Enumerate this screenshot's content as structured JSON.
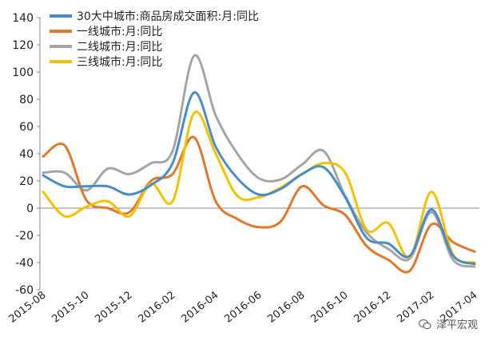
{
  "chart_data": {
    "type": "line",
    "xlabel": "",
    "ylabel": "",
    "ylim": [
      -60,
      140
    ],
    "yticks": [
      140,
      120,
      100,
      80,
      60,
      40,
      20,
      0,
      -20,
      -40,
      -60
    ],
    "categories": [
      "2015-08",
      "2015-09",
      "2015-10",
      "2015-11",
      "2015-12",
      "2016-01",
      "2016-02",
      "2016-03",
      "2016-04",
      "2016-05",
      "2016-06",
      "2016-07",
      "2016-08",
      "2016-09",
      "2016-10",
      "2016-11",
      "2016-12",
      "2017-01",
      "2017-02",
      "2017-03",
      "2017-04"
    ],
    "xtick_labels": [
      "2015-08",
      "2015-10",
      "2015-12",
      "2016-02",
      "2016-04",
      "2016-06",
      "2016-08",
      "2016-10",
      "2016-12",
      "2017-02",
      "2017-04"
    ],
    "grid": false,
    "legend_position": "top-left",
    "series": [
      {
        "name": "30大中城市:商品房成交面积:月:同比",
        "color": "#4a8cc7",
        "values": [
          24,
          16,
          16,
          16,
          10,
          17,
          33,
          85,
          45,
          22,
          10,
          14,
          25,
          30,
          8,
          -22,
          -26,
          -35,
          -1,
          -35,
          -41
        ]
      },
      {
        "name": "一线城市:月:同比",
        "color": "#e0782c",
        "values": [
          38,
          46,
          6,
          0,
          -3,
          20,
          25,
          52,
          5,
          -8,
          -14,
          -10,
          16,
          2,
          -5,
          -28,
          -38,
          -46,
          -12,
          -25,
          -32
        ]
      },
      {
        "name": "二线城市:月:同比",
        "color": "#a5a5a5",
        "values": [
          26,
          26,
          13,
          29,
          25,
          33,
          42,
          112,
          68,
          40,
          22,
          21,
          32,
          42,
          9,
          -18,
          -30,
          -37,
          -3,
          -38,
          -43
        ]
      },
      {
        "name": "三线城市:月:同比",
        "color": "#f2c200",
        "values": [
          12,
          -6,
          1,
          5,
          -6,
          18,
          5,
          70,
          40,
          9,
          8,
          15,
          25,
          33,
          26,
          -16,
          -11,
          -36,
          12,
          -34,
          -40
        ]
      }
    ]
  },
  "watermark": {
    "text": "泽平宏观",
    "icon": "wechat-icon"
  }
}
